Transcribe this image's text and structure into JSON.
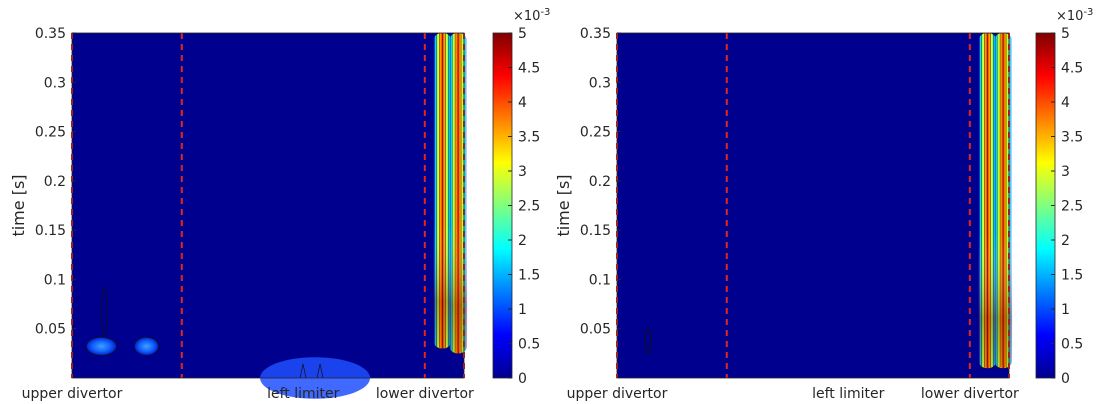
{
  "chart_data": [
    {
      "type": "heatmap",
      "panel": "left",
      "ylabel": "time [s]",
      "ylim": [
        0,
        0.35
      ],
      "yticks": [
        "0.35",
        "0.3",
        "0.25",
        "0.2",
        "0.15",
        "0.1",
        "0.05"
      ],
      "xtick_labels": [
        "upper divertor",
        "left limiter",
        "lower divertor"
      ],
      "region_boundaries_x": [
        0,
        0.28,
        0.9,
        1.0
      ],
      "colorbar": {
        "min": 0,
        "max": 0.005,
        "multiplier": "×10-3",
        "ticks": [
          "5",
          "4.5",
          "4",
          "3.5",
          "3",
          "2.5",
          "2",
          "1.5",
          "1",
          "0.5",
          "0"
        ]
      },
      "features": [
        {
          "name": "lower-divertor-strike-1",
          "x_center": 0.945,
          "t_start": 0.03,
          "t_end": 0.35,
          "peak_value": 0.0048
        },
        {
          "name": "lower-divertor-strike-2",
          "x_center": 0.985,
          "t_start": 0.025,
          "t_end": 0.35,
          "peak_value": 0.0046
        },
        {
          "name": "upper-divertor-blob-1",
          "x_center": 0.075,
          "t_start": 0.02,
          "t_end": 0.09,
          "peak_value": 0.0008
        },
        {
          "name": "upper-divertor-blob-2",
          "x_center": 0.19,
          "t_start": 0.02,
          "t_end": 0.04,
          "peak_value": 0.0007
        },
        {
          "name": "left-limiter-edge",
          "x_center": 0.62,
          "t_start": 0.0,
          "t_end": 0.015,
          "peak_value": 0.0006
        }
      ]
    },
    {
      "type": "heatmap",
      "panel": "right",
      "ylabel": "time [s]",
      "ylim": [
        0,
        0.35
      ],
      "yticks": [
        "0.35",
        "0.3",
        "0.25",
        "0.2",
        "0.15",
        "0.1",
        "0.05"
      ],
      "xtick_labels": [
        "upper divertor",
        "left limiter",
        "lower divertor"
      ],
      "region_boundaries_x": [
        0,
        0.28,
        0.9,
        1.0
      ],
      "colorbar": {
        "min": 0,
        "max": 0.005,
        "multiplier": "×10-3",
        "ticks": [
          "5",
          "4.5",
          "4",
          "3.5",
          "3",
          "2.5",
          "2",
          "1.5",
          "1",
          "0.5",
          "0"
        ]
      },
      "features": [
        {
          "name": "lower-divertor-strike-1",
          "x_center": 0.945,
          "t_start": 0.01,
          "t_end": 0.35,
          "peak_value": 0.0049
        },
        {
          "name": "lower-divertor-strike-2",
          "x_center": 0.985,
          "t_start": 0.01,
          "t_end": 0.35,
          "peak_value": 0.0047
        },
        {
          "name": "upper-divertor-contour",
          "x_center": 0.08,
          "t_start": 0.025,
          "t_end": 0.05,
          "peak_value": 0.0002
        }
      ]
    }
  ]
}
